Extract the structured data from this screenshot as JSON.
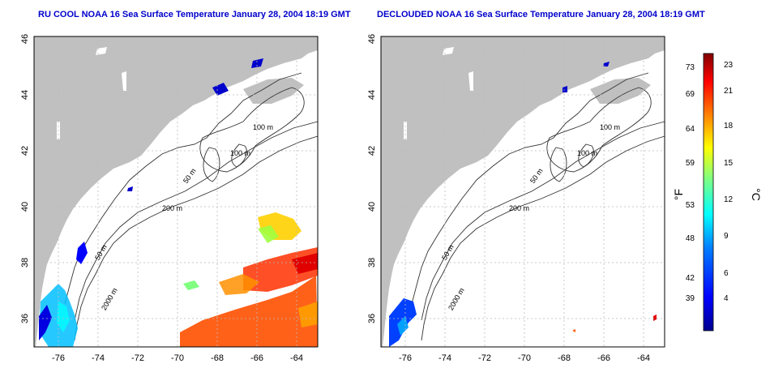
{
  "panels": [
    {
      "title": "RU COOL NOAA 16 Sea Surface Temperature January 28, 2004 18:19 GMT"
    },
    {
      "title": "DECLOUDED NOAA 16 Sea Surface Temperature January 28, 2004 18:19 GMT"
    }
  ],
  "map": {
    "lat_ticks": [
      "46",
      "44",
      "42",
      "40",
      "38",
      "36"
    ],
    "lon_ticks": [
      "-76",
      "-74",
      "-72",
      "-70",
      "-68",
      "-66",
      "-64"
    ],
    "contour_labels": [
      "100 m",
      "100 m",
      "50 m",
      "200 m",
      "50 m",
      "2000 m"
    ]
  },
  "colorbar": {
    "f_ticks": [
      "73",
      "69",
      "64",
      "59",
      "53",
      "48",
      "42",
      "39"
    ],
    "c_ticks": [
      "23",
      "21",
      "18",
      "15",
      "12",
      "9",
      "6",
      "4"
    ],
    "f_label": "°F",
    "c_label": "°C",
    "colors": [
      "#00008f",
      "#0000ff",
      "#0080ff",
      "#00ffff",
      "#80ff80",
      "#ffff00",
      "#ff8000",
      "#ff0000",
      "#800000"
    ]
  }
}
